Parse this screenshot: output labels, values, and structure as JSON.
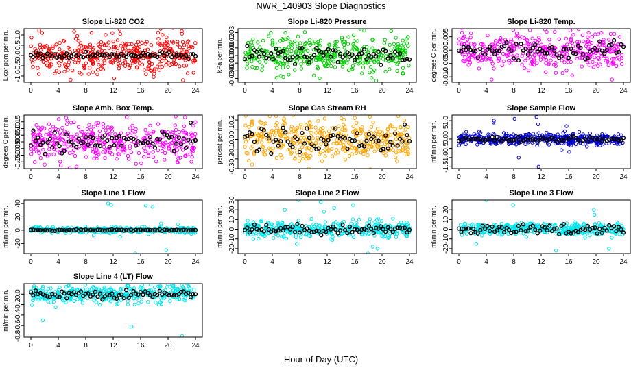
{
  "title": "NWR_140903  Slope Diagnostics",
  "xlabel": "Hour of Day (UTC)",
  "chart_data": [
    {
      "type": "scatter",
      "title": "Slope Li-820 CO2",
      "ylabel": "Licor ppm per min.",
      "ylim": [
        -1.3,
        1.3
      ],
      "yticks": [
        -1.0,
        -0.5,
        0.0,
        0.5,
        1.0
      ],
      "xlim": [
        -1,
        25
      ],
      "xticks": [
        0,
        4,
        8,
        12,
        16,
        20,
        24
      ],
      "grid": false,
      "color": "#ff0000",
      "spread": 0.45,
      "outlier_values": [
        1.3,
        -1.2,
        1.1,
        -0.9
      ],
      "mean_spread": 0.08
    },
    {
      "type": "scatter",
      "title": "Slope Li-820 Pressure",
      "ylabel": "kPa per min.",
      "ylim": [
        -0.035,
        0.035
      ],
      "yticks": [
        -0.03,
        -0.02,
        -0.01,
        0.0,
        0.01,
        0.02,
        0.03
      ],
      "xlim": [
        -1,
        25
      ],
      "xticks": [
        0,
        4,
        8,
        12,
        16,
        20,
        24
      ],
      "grid": false,
      "color": "#00cc00",
      "spread": 0.011,
      "outlier_values": [
        0.035,
        -0.033,
        0.03,
        -0.03
      ],
      "mean_spread": 0.006
    },
    {
      "type": "scatter",
      "title": "Slope Li-820 Temp.",
      "ylabel": "degrees C per min.",
      "ylim": [
        -0.012,
        0.008
      ],
      "yticks": [
        -0.01,
        -0.005,
        0.0,
        0.005
      ],
      "xlim": [
        -1,
        25
      ],
      "xticks": [
        0,
        4,
        8,
        12,
        16,
        20,
        24
      ],
      "grid": false,
      "color": "#ff00ff",
      "spread": 0.0035,
      "outlier_values": [
        -0.011,
        -0.011,
        0.005
      ],
      "mean_spread": 0.0025
    },
    {
      "type": "scatter",
      "title": "Slope Amb. Box Temp.",
      "ylabel": "degrees C per min.",
      "ylim": [
        -0.2,
        0.2
      ],
      "yticks": [
        -0.15,
        -0.1,
        -0.05,
        0.0,
        0.05,
        0.1,
        0.15
      ],
      "xlim": [
        -1,
        25
      ],
      "xticks": [
        0,
        4,
        8,
        12,
        16,
        20,
        24
      ],
      "grid": false,
      "color": "#ff00ff",
      "spread": 0.07,
      "outlier_values": [
        0.19,
        -0.17,
        0.18
      ],
      "mean_spread": 0.05
    },
    {
      "type": "scatter",
      "title": "Slope Gas Stream RH",
      "ylabel": "percent per min.",
      "ylim": [
        -0.3,
        0.25
      ],
      "yticks": [
        -0.3,
        -0.2,
        -0.1,
        0.0,
        0.1,
        0.2
      ],
      "xlim": [
        -1,
        25
      ],
      "xticks": [
        0,
        4,
        8,
        12,
        16,
        20,
        24
      ],
      "grid": false,
      "color": "#ffa500",
      "spread": 0.1,
      "outlier_values": [
        0.25,
        -0.3,
        0.24
      ],
      "mean_spread": 0.08
    },
    {
      "type": "scatter",
      "title": "Slope Sample Flow",
      "ylabel": "ml/min per min.",
      "ylim": [
        -1.6,
        1.3
      ],
      "yticks": [
        -1.5,
        -1.0,
        -0.5,
        0.0,
        0.5,
        1.0
      ],
      "xlim": [
        -1,
        25
      ],
      "xticks": [
        0,
        4,
        8,
        12,
        16,
        20,
        24
      ],
      "grid": false,
      "color": "#0000cc",
      "spread": 0.15,
      "outlier_values": [
        1.2,
        1.0,
        0.9,
        0.7,
        -0.7,
        -1.0,
        -1.5,
        1.1,
        0.8,
        -0.6
      ],
      "mean_spread": 0.08
    },
    {
      "type": "scatter",
      "title": "Slope Line 1 Flow",
      "ylabel": "ml/min per min.",
      "ylim": [
        -35,
        45
      ],
      "yticks": [
        -20,
        0,
        20,
        40
      ],
      "xlim": [
        -1,
        25
      ],
      "xticks": [
        0,
        4,
        8,
        12,
        16,
        20,
        24
      ],
      "grid": false,
      "color": "#00e5ee",
      "spread": 2,
      "outlier_values": [
        37,
        35,
        -30,
        -35,
        40,
        38,
        -10,
        10,
        -8
      ],
      "mean_spread": 0.5
    },
    {
      "type": "scatter",
      "title": "Slope Line 2 Flow",
      "ylabel": "ml/min per min.",
      "ylim": [
        -25,
        30
      ],
      "yticks": [
        -20,
        -10,
        0,
        10,
        20,
        30
      ],
      "xlim": [
        -1,
        25
      ],
      "xticks": [
        0,
        4,
        8,
        12,
        16,
        20,
        24
      ],
      "grid": false,
      "color": "#00e5ee",
      "spread": 4,
      "outlier_values": [
        25,
        22,
        -20,
        -25,
        30,
        28,
        -18,
        18,
        -15,
        20
      ],
      "mean_spread": 3
    },
    {
      "type": "scatter",
      "title": "Slope Line 3 Flow",
      "ylabel": "ml/min per min.",
      "ylim": [
        -25,
        30
      ],
      "yticks": [
        -20,
        -10,
        0,
        10,
        20
      ],
      "xlim": [
        -1,
        25
      ],
      "xticks": [
        0,
        4,
        8,
        12,
        16,
        20,
        24
      ],
      "grid": false,
      "color": "#00e5ee",
      "spread": 3,
      "outlier_values": [
        30,
        25,
        -22,
        -20,
        20,
        -15,
        15
      ],
      "mean_spread": 3
    },
    {
      "type": "scatter",
      "title": "Slope Line 4 (LT) Flow",
      "ylabel": "ml/min per min.",
      "ylim": [
        -0.82,
        0.2
      ],
      "yticks": [
        -0.8,
        -0.6,
        -0.4,
        -0.2,
        0.0
      ],
      "xlim": [
        -1,
        25
      ],
      "xticks": [
        0,
        4,
        8,
        12,
        16,
        20,
        24
      ],
      "grid": false,
      "color": "#00e5ee",
      "spread": 0.08,
      "outlier_values": [
        -0.5,
        -0.8,
        -0.62,
        -0.25,
        -0.2
      ],
      "mean_spread": 0.05
    }
  ]
}
